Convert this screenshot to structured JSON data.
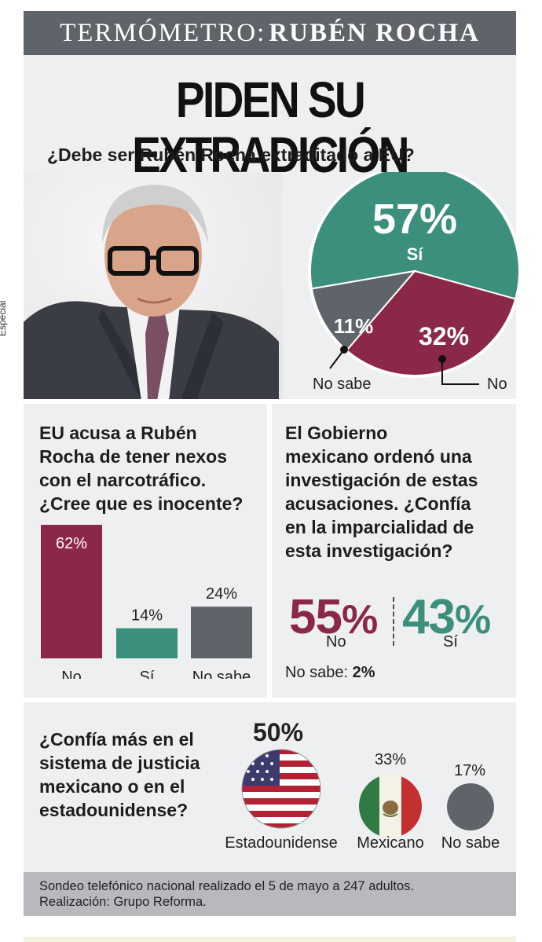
{
  "header": {
    "label": "TERMÓMETRO:",
    "name": "RUBÉN ROCHA"
  },
  "headline": "PIDEN SU EXTRADICIÓN",
  "credit": "Especial",
  "colors": {
    "green": "#3c8f7c",
    "maroon": "#8c2847",
    "gray": "#5f646a",
    "panel": "#eeeff1"
  },
  "chart_data": [
    {
      "type": "pie",
      "title": "¿Debe ser Rubén Rocha extraditado a EU?",
      "slices": [
        {
          "label": "Sí",
          "value": 57,
          "display": "57%",
          "color": "#3c8f7c"
        },
        {
          "label": "No",
          "value": 32,
          "display": "32%",
          "color": "#8c2847"
        },
        {
          "label": "No sabe",
          "value": 11,
          "display": "11%",
          "color": "#5f646a"
        }
      ]
    },
    {
      "type": "bar",
      "title": "EU acusa a Rubén Rocha de tener nexos con el narcotráfico. ¿Cree que es inocente?",
      "categories": [
        "No",
        "Sí",
        "No sabe"
      ],
      "values": [
        62,
        14,
        24
      ],
      "labels": [
        "62%",
        "14%",
        "24%"
      ],
      "colors": [
        "#8c2847",
        "#3c8f7c",
        "#5f646a"
      ],
      "ylim": [
        0,
        62
      ]
    },
    {
      "type": "table",
      "title": "El Gobierno mexicano ordenó una investigación de estas acusaciones. ¿Confía en la imparcialidad de esta investigación?",
      "items": [
        {
          "label": "No",
          "value": 55,
          "number": "55",
          "unit": "%"
        },
        {
          "label": "Sí",
          "value": 43,
          "number": "43",
          "unit": "%"
        }
      ],
      "no_sabe_label": "No sabe:",
      "no_sabe_value": "2%"
    },
    {
      "type": "bar",
      "title": "¿Confía más en el sistema de justicia mexicano o en el estadounidense?",
      "categories": [
        "Estadounidense",
        "Mexicano",
        "No sabe"
      ],
      "values": [
        50,
        33,
        17
      ],
      "labels": [
        "50%",
        "33%",
        "17%"
      ],
      "icons": [
        "usa-flag-icon",
        "mexico-flag-icon",
        "gray-circle-icon"
      ]
    }
  ],
  "q3_lines": [
    "El Gobierno",
    "mexicano ordenó una",
    "investigación de estas",
    "acusaciones. ¿Confía",
    "en la imparcialidad de",
    "esta investigación?"
  ],
  "q2_lines": [
    "EU acusa a Rubén",
    "Rocha de tener nexos",
    "con el narcotráfico.",
    "¿Cree que es inocente?"
  ],
  "q4_lines": [
    "¿Confía más en el",
    "sistema de justicia",
    "mexicano o en el",
    "estadounidense?"
  ],
  "footer": {
    "line1": "Sondeo telefónico nacional realizado el 5 de mayo a 247 adultos.",
    "line2": "Realización: Grupo Reforma."
  }
}
